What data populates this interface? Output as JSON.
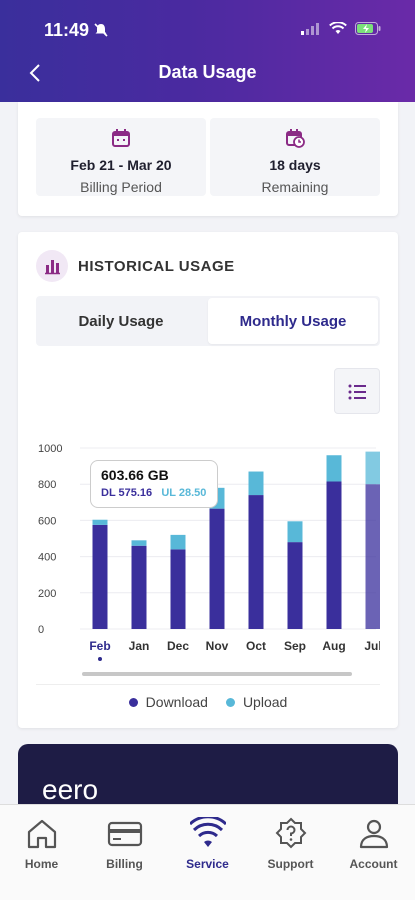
{
  "status_bar": {
    "time": "11:49"
  },
  "header": {
    "title": "Data Usage"
  },
  "billing": {
    "period_value": "Feb 21 - Mar 20",
    "period_label": "Billing Period",
    "remaining_value": "18 days",
    "remaining_label": "Remaining"
  },
  "history": {
    "title": "HISTORICAL USAGE",
    "tabs": [
      {
        "label": "Daily Usage",
        "active": false
      },
      {
        "label": "Monthly Usage",
        "active": true
      }
    ],
    "tooltip": {
      "total": "603.66 GB",
      "dl": "DL 575.16",
      "ul": "UL 28.50"
    },
    "legend": {
      "download": "Download",
      "upload": "Upload"
    }
  },
  "chart_data": {
    "type": "bar",
    "stacked": true,
    "categories": [
      "Feb",
      "Jan",
      "Dec",
      "Nov",
      "Oct",
      "Sep",
      "Aug",
      "Jul"
    ],
    "series": [
      {
        "name": "Download",
        "values": [
          575.16,
          460,
          440,
          665,
          740,
          480,
          815,
          800
        ]
      },
      {
        "name": "Upload",
        "values": [
          28.5,
          30,
          80,
          115,
          130,
          115,
          145,
          180
        ]
      }
    ],
    "ylim": [
      0,
      1000
    ],
    "yticks": [
      0,
      200,
      400,
      600,
      800,
      1000
    ],
    "grid": true,
    "selected_category": "Feb",
    "colors": {
      "download": "#3a2f9c",
      "upload": "#58b8d8"
    }
  },
  "promo": {
    "text": "eero"
  },
  "nav": {
    "items": [
      {
        "label": "Home",
        "icon": "home-icon"
      },
      {
        "label": "Billing",
        "icon": "billing-card-icon"
      },
      {
        "label": "Service",
        "icon": "wifi-icon",
        "active": true
      },
      {
        "label": "Support",
        "icon": "support-question-icon"
      },
      {
        "label": "Account",
        "icon": "account-person-icon"
      }
    ]
  }
}
